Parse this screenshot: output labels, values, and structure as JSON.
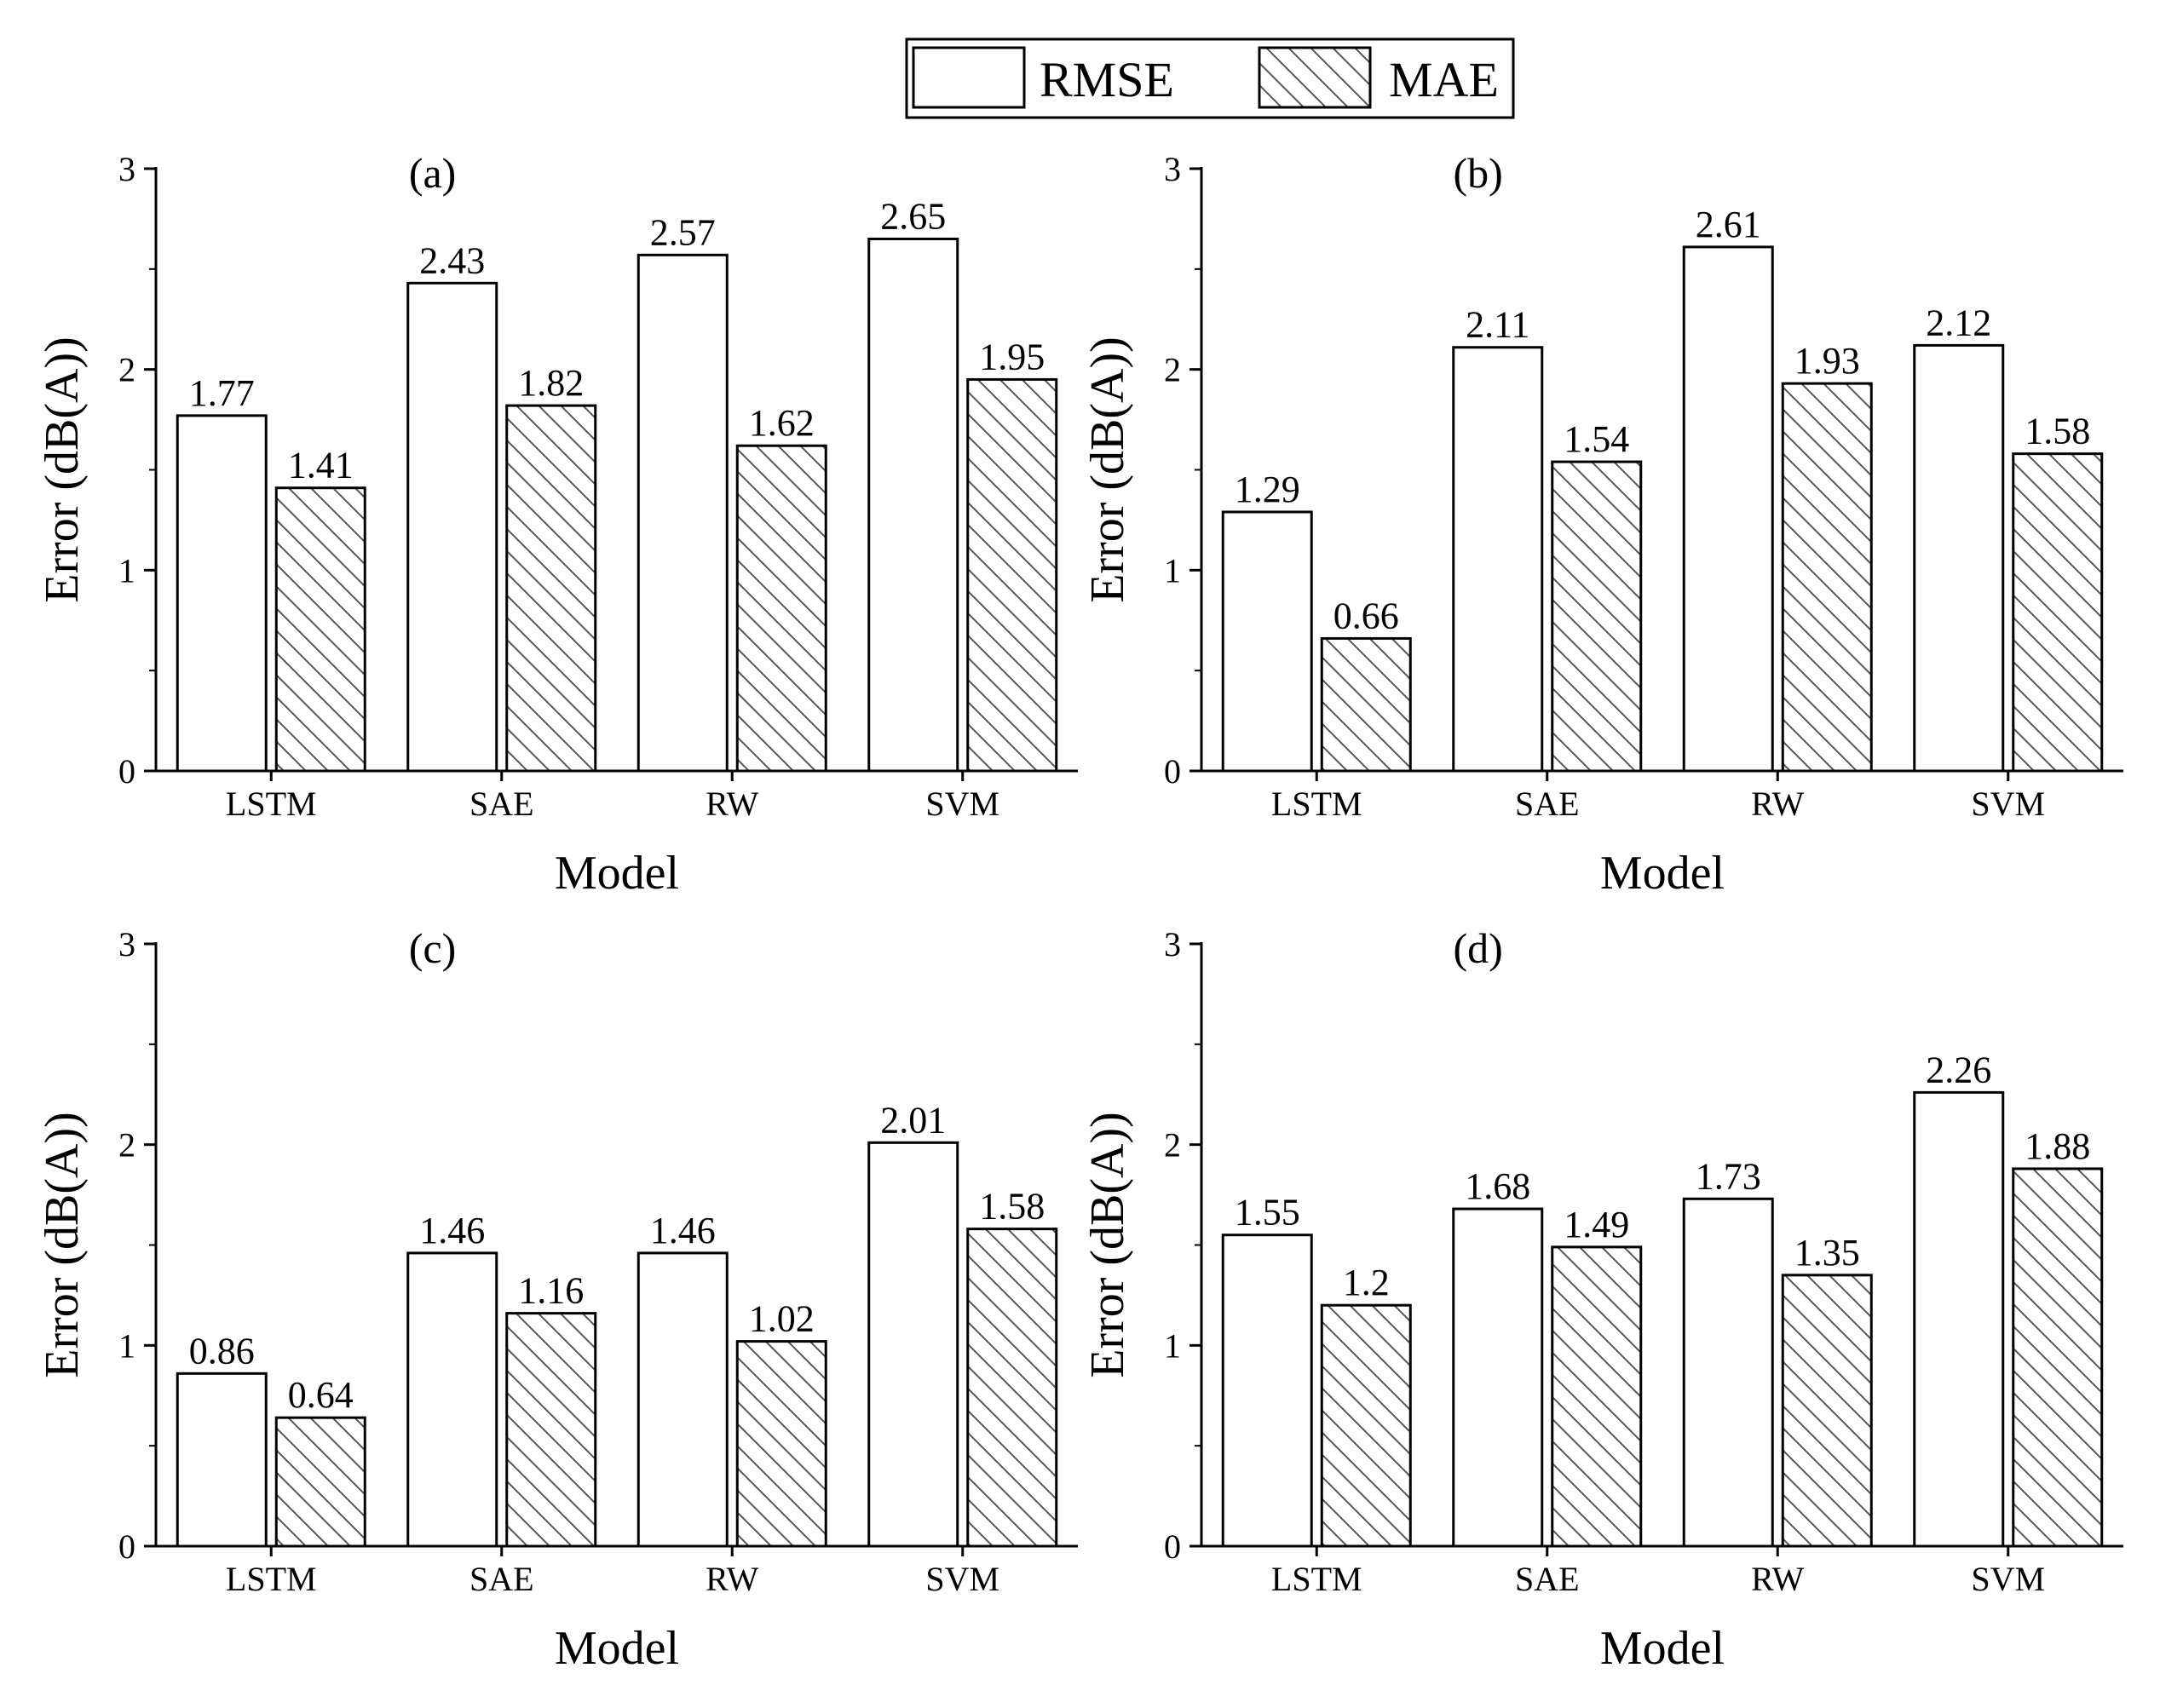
{
  "legend": {
    "items": [
      {
        "label": "RMSE",
        "style": "plain"
      },
      {
        "label": "MAE",
        "style": "hatched"
      }
    ]
  },
  "colors": {
    "stroke": "#000000",
    "fill": "#ffffff",
    "hatch": "#555555"
  },
  "chart_data": [
    {
      "type": "bar",
      "title": "(a)",
      "categories": [
        "LSTM",
        "SAE",
        "RW",
        "SVM"
      ],
      "series": [
        {
          "name": "RMSE",
          "values": [
            1.77,
            2.43,
            2.57,
            2.65
          ],
          "labels": [
            "1.77",
            "2.43",
            "2.57",
            "2.65"
          ]
        },
        {
          "name": "MAE",
          "values": [
            1.41,
            1.82,
            1.62,
            1.95
          ],
          "labels": [
            "1.41",
            "1.82",
            "1.62",
            "1.95"
          ]
        }
      ],
      "xlabel": "Model",
      "ylabel": "Error (dB(A))",
      "ylim": [
        0,
        3
      ],
      "yticks": [
        "0",
        "1",
        "2",
        "3"
      ],
      "grid": false
    },
    {
      "type": "bar",
      "title": "(b)",
      "categories": [
        "LSTM",
        "SAE",
        "RW",
        "SVM"
      ],
      "series": [
        {
          "name": "RMSE",
          "values": [
            1.29,
            2.11,
            2.61,
            2.12
          ],
          "labels": [
            "1.29",
            "2.11",
            "2.61",
            "2.12"
          ]
        },
        {
          "name": "MAE",
          "values": [
            0.66,
            1.54,
            1.93,
            1.58
          ],
          "labels": [
            "0.66",
            "1.54",
            "1.93",
            "1.58"
          ]
        }
      ],
      "xlabel": "Model",
      "ylabel": "Error (dB(A))",
      "ylim": [
        0,
        3
      ],
      "yticks": [
        "0",
        "1",
        "2",
        "3"
      ],
      "grid": false
    },
    {
      "type": "bar",
      "title": "(c)",
      "categories": [
        "LSTM",
        "SAE",
        "RW",
        "SVM"
      ],
      "series": [
        {
          "name": "RMSE",
          "values": [
            0.86,
            1.46,
            1.46,
            2.01
          ],
          "labels": [
            "0.86",
            "1.46",
            "1.46",
            "2.01"
          ]
        },
        {
          "name": "MAE",
          "values": [
            0.64,
            1.16,
            1.02,
            1.58
          ],
          "labels": [
            "0.64",
            "1.16",
            "1.02",
            "1.58"
          ]
        }
      ],
      "xlabel": "Model",
      "ylabel": "Error (dB(A))",
      "ylim": [
        0,
        3
      ],
      "yticks": [
        "0",
        "1",
        "2",
        "3"
      ],
      "grid": false
    },
    {
      "type": "bar",
      "title": "(d)",
      "categories": [
        "LSTM",
        "SAE",
        "RW",
        "SVM"
      ],
      "series": [
        {
          "name": "RMSE",
          "values": [
            1.55,
            1.68,
            1.73,
            2.26
          ],
          "labels": [
            "1.55",
            "1.68",
            "1.73",
            "2.26"
          ]
        },
        {
          "name": "MAE",
          "values": [
            1.2,
            1.49,
            1.35,
            1.88
          ],
          "labels": [
            "1.2",
            "1.49",
            "1.35",
            "1.88"
          ]
        }
      ],
      "xlabel": "Model",
      "ylabel": "Error (dB(A))",
      "ylim": [
        0,
        3
      ],
      "yticks": [
        "0",
        "1",
        "2",
        "3"
      ],
      "grid": false
    }
  ]
}
